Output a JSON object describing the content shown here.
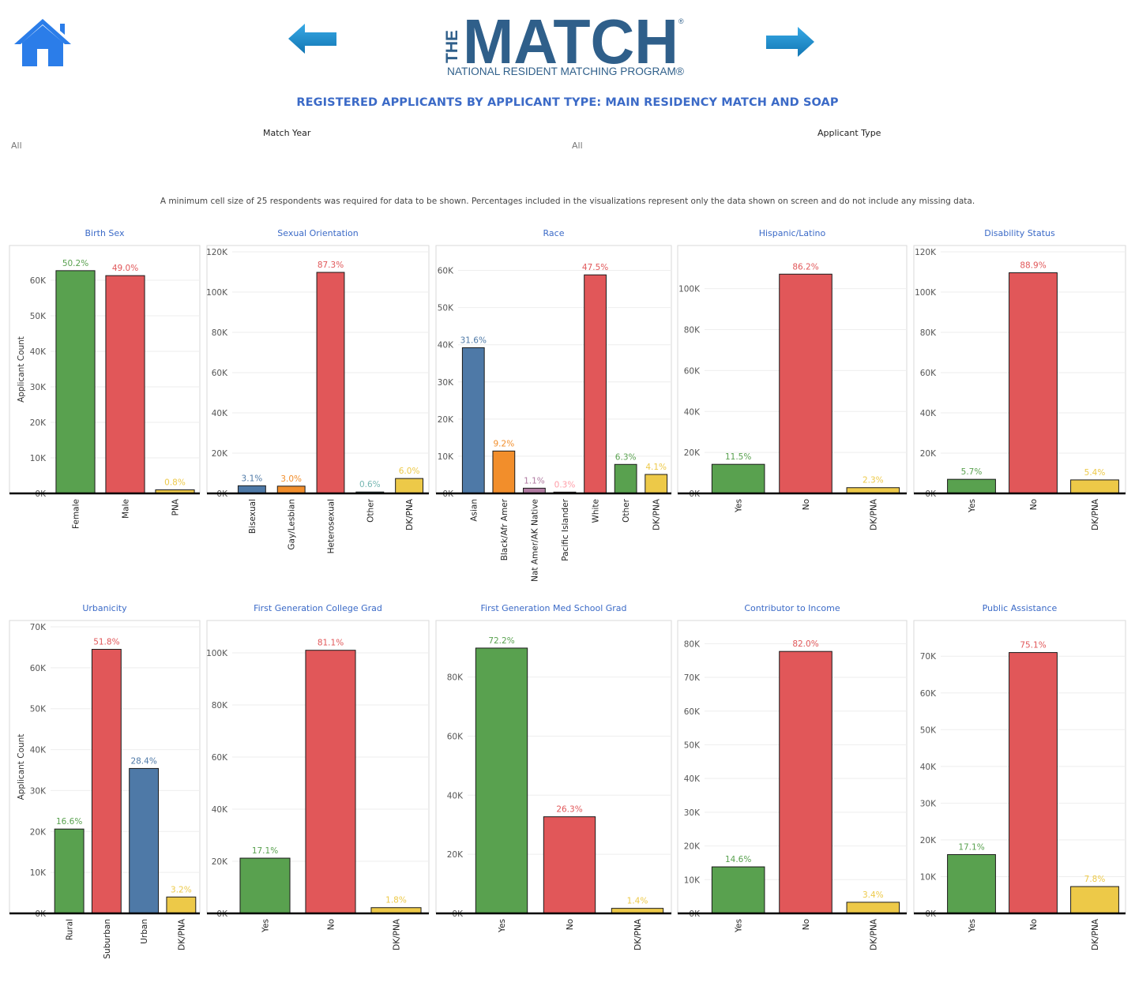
{
  "header": {
    "logo_the": "THE",
    "logo_match": "MATCH",
    "logo_registered": "®",
    "logo_subtitle": "NATIONAL RESIDENT MATCHING PROGRAM®",
    "home_icon": "house-icon",
    "back_icon": "left-arrow-icon",
    "forward_icon": "right-arrow-icon",
    "home_color": "#2b7de9",
    "arrow_color": "#1a8ccf"
  },
  "title": "REGISTERED APPLICANTS BY APPLICANT TYPE: MAIN RESIDENCY MATCH AND SOAP",
  "filters": {
    "match_year": {
      "label": "Match Year",
      "value": "All"
    },
    "applicant_type": {
      "label": "Applicant Type",
      "value": "All"
    }
  },
  "disclaimer": "A minimum cell size of 25 respondents was required for data to be shown. Percentages included in the visualizations represent only the data shown on screen and do not include any missing data.",
  "colors": {
    "green": "#59a14f",
    "red": "#e15759",
    "blue": "#4e79a7",
    "orange": "#f28e2b",
    "purple": "#b07aa1",
    "pink": "#ff9da7",
    "teal": "#76b7b2",
    "yellow": "#edc948",
    "title_blue": "#3b6ac7"
  },
  "chart_data": [
    {
      "type": "bar",
      "title": "Birth Sex",
      "ylabel": "Applicant Count",
      "ylim": [
        0,
        68000
      ],
      "yticks": [
        0,
        10000,
        20000,
        30000,
        40000,
        50000,
        60000
      ],
      "categories": [
        "Female",
        "Male",
        "PNA"
      ],
      "values": [
        62700,
        61300,
        1000
      ],
      "labels": [
        "50.2%",
        "49.0%",
        "0.8%"
      ],
      "colors": [
        "green",
        "red",
        "yellow"
      ]
    },
    {
      "type": "bar",
      "title": "Sexual Orientation",
      "ylabel": "",
      "ylim": [
        0,
        120000
      ],
      "yticks": [
        0,
        20000,
        40000,
        60000,
        80000,
        100000,
        120000
      ],
      "categories": [
        "Bisexual",
        "Gay/Lesbian",
        "Heterosexual",
        "Other",
        "DK/PNA"
      ],
      "values": [
        3800,
        3600,
        109800,
        700,
        7400
      ],
      "labels": [
        "3.1%",
        "3.0%",
        "87.3%",
        "0.6%",
        "6.0%"
      ],
      "colors": [
        "blue",
        "orange",
        "red",
        "teal",
        "yellow"
      ]
    },
    {
      "type": "bar",
      "title": "Race",
      "ylabel": "",
      "ylim": [
        0,
        65000
      ],
      "yticks": [
        0,
        10000,
        20000,
        30000,
        40000,
        50000,
        60000
      ],
      "categories": [
        "Asian",
        "Black/Afr Amer",
        "Nat Amer/AK Native",
        "Pacific Islander",
        "White",
        "Other",
        "DK/PNA"
      ],
      "values": [
        39200,
        11400,
        1400,
        350,
        58800,
        7800,
        5100
      ],
      "labels": [
        "31.6%",
        "9.2%",
        "1.1%",
        "0.3%",
        "47.5%",
        "6.3%",
        "4.1%"
      ],
      "colors": [
        "blue",
        "orange",
        "purple",
        "pink",
        "red",
        "green",
        "yellow"
      ]
    },
    {
      "type": "bar",
      "title": "Hispanic/Latino",
      "ylabel": "",
      "ylim": [
        0,
        118000
      ],
      "yticks": [
        0,
        20000,
        40000,
        60000,
        80000,
        100000
      ],
      "categories": [
        "Yes",
        "No",
        "DK/PNA"
      ],
      "values": [
        14200,
        107100,
        2800
      ],
      "labels": [
        "11.5%",
        "86.2%",
        "2.3%"
      ],
      "colors": [
        "green",
        "red",
        "yellow"
      ]
    },
    {
      "type": "bar",
      "title": "Disability Status",
      "ylabel": "",
      "ylim": [
        0,
        120000
      ],
      "yticks": [
        0,
        20000,
        40000,
        60000,
        80000,
        100000,
        120000
      ],
      "categories": [
        "Yes",
        "No",
        "DK/PNA"
      ],
      "values": [
        7000,
        109600,
        6700
      ],
      "labels": [
        "5.7%",
        "88.9%",
        "5.4%"
      ],
      "colors": [
        "green",
        "red",
        "yellow"
      ]
    },
    {
      "type": "bar",
      "title": "Urbanicity",
      "ylabel": "Applicant Count",
      "ylim": [
        0,
        70000
      ],
      "yticks": [
        0,
        10000,
        20000,
        30000,
        40000,
        50000,
        60000,
        70000
      ],
      "categories": [
        "Rural",
        "Suburban",
        "Urban",
        "DK/PNA"
      ],
      "values": [
        20600,
        64500,
        35400,
        4000
      ],
      "labels": [
        "16.6%",
        "51.8%",
        "28.4%",
        "3.2%"
      ],
      "colors": [
        "green",
        "red",
        "blue",
        "yellow"
      ]
    },
    {
      "type": "bar",
      "title": "First Generation College Grad",
      "ylabel": "",
      "ylim": [
        0,
        110000
      ],
      "yticks": [
        0,
        20000,
        40000,
        60000,
        80000,
        100000
      ],
      "categories": [
        "Yes",
        "No",
        "DK/PNA"
      ],
      "values": [
        21200,
        101000,
        2200
      ],
      "labels": [
        "17.1%",
        "81.1%",
        "1.8%"
      ],
      "colors": [
        "green",
        "red",
        "yellow"
      ]
    },
    {
      "type": "bar",
      "title": "First Generation Med School Grad",
      "ylabel": "",
      "ylim": [
        0,
        97000
      ],
      "yticks": [
        0,
        20000,
        40000,
        60000,
        80000
      ],
      "categories": [
        "Yes",
        "No",
        "DK/PNA"
      ],
      "values": [
        89800,
        32700,
        1700
      ],
      "labels": [
        "72.2%",
        "26.3%",
        "1.4%"
      ],
      "colors": [
        "green",
        "red",
        "yellow"
      ]
    },
    {
      "type": "bar",
      "title": "Contributor to Income",
      "ylabel": "",
      "ylim": [
        0,
        85000
      ],
      "yticks": [
        0,
        10000,
        20000,
        30000,
        40000,
        50000,
        60000,
        70000,
        80000
      ],
      "categories": [
        "Yes",
        "No",
        "DK/PNA"
      ],
      "values": [
        13800,
        77700,
        3300
      ],
      "labels": [
        "14.6%",
        "82.0%",
        "3.4%"
      ],
      "colors": [
        "green",
        "red",
        "yellow"
      ]
    },
    {
      "type": "bar",
      "title": "Public Assistance",
      "ylabel": "",
      "ylim": [
        0,
        78000
      ],
      "yticks": [
        0,
        10000,
        20000,
        30000,
        40000,
        50000,
        60000,
        70000
      ],
      "categories": [
        "Yes",
        "No",
        "DK/PNA"
      ],
      "values": [
        16000,
        71000,
        7300
      ],
      "labels": [
        "17.1%",
        "75.1%",
        "7.8%"
      ],
      "colors": [
        "green",
        "red",
        "yellow"
      ]
    }
  ]
}
